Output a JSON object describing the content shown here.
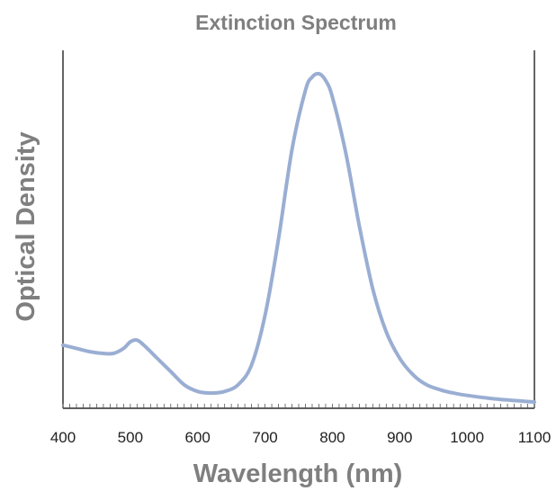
{
  "chart_data": {
    "type": "line",
    "title": "Extinction Spectrum",
    "xlabel": "Wavelength (nm)",
    "ylabel": "Optical Density",
    "xlim": [
      400,
      1100
    ],
    "ylim": [
      0,
      1
    ],
    "x_ticks": [
      400,
      500,
      600,
      700,
      800,
      900,
      1000,
      1100
    ],
    "x_tick_labels": [
      "400",
      "500",
      "600",
      "700",
      "800",
      "900",
      "1000",
      "1100"
    ],
    "y_ticks_shown": false,
    "grid": false,
    "line_color": "#9aaed3",
    "axis_color": "#000000",
    "title_color": "#7f7f7f",
    "series": [
      {
        "x": [
          400,
          420,
          440,
          460,
          475,
          490,
          500,
          510,
          520,
          540,
          560,
          580,
          600,
          620,
          640,
          660,
          680,
          700,
          720,
          740,
          760,
          770,
          780,
          790,
          800,
          820,
          840,
          860,
          880,
          900,
          920,
          940,
          960,
          980,
          1000,
          1030,
          1060,
          1100
        ],
        "y": [
          0.18,
          0.17,
          0.16,
          0.155,
          0.155,
          0.17,
          0.19,
          0.195,
          0.18,
          0.14,
          0.1,
          0.06,
          0.04,
          0.035,
          0.04,
          0.06,
          0.12,
          0.27,
          0.5,
          0.77,
          0.95,
          0.99,
          1.0,
          0.98,
          0.93,
          0.76,
          0.54,
          0.35,
          0.22,
          0.14,
          0.09,
          0.06,
          0.045,
          0.035,
          0.028,
          0.02,
          0.014,
          0.008
        ]
      }
    ]
  }
}
